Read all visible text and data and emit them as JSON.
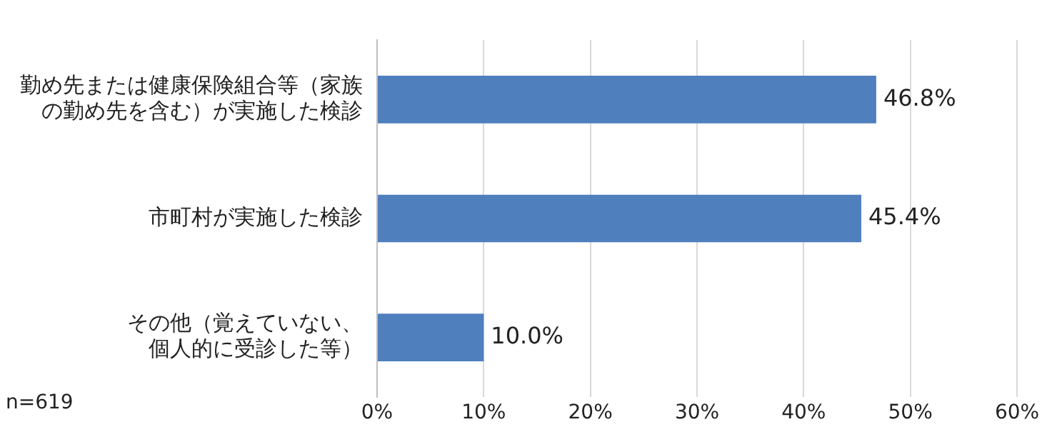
{
  "chart_data": {
    "type": "bar",
    "orientation": "horizontal",
    "categories": [
      "勤め先または健康保険組合等（家族の勤め先を含む）が実施した検診",
      "市町村が実施した検診",
      "その他（覚えていない、個人的に受診した等）"
    ],
    "values": [
      46.8,
      45.4,
      10.0
    ],
    "color": "#4f7fbd",
    "value_labels": [
      "46.8%",
      "45.4%",
      "10.0%"
    ],
    "xlim": [
      0,
      60
    ],
    "xticks": [
      {
        "value": 0,
        "label": "0%"
      },
      {
        "value": 10,
        "label": "10%"
      },
      {
        "value": 20,
        "label": "20%"
      },
      {
        "value": 30,
        "label": "30%"
      },
      {
        "value": 40,
        "label": "40%"
      },
      {
        "value": 50,
        "label": "50%"
      },
      {
        "value": 60,
        "label": "60%"
      }
    ],
    "grid": "x",
    "legend": false,
    "annotations": [
      "n=619"
    ]
  }
}
